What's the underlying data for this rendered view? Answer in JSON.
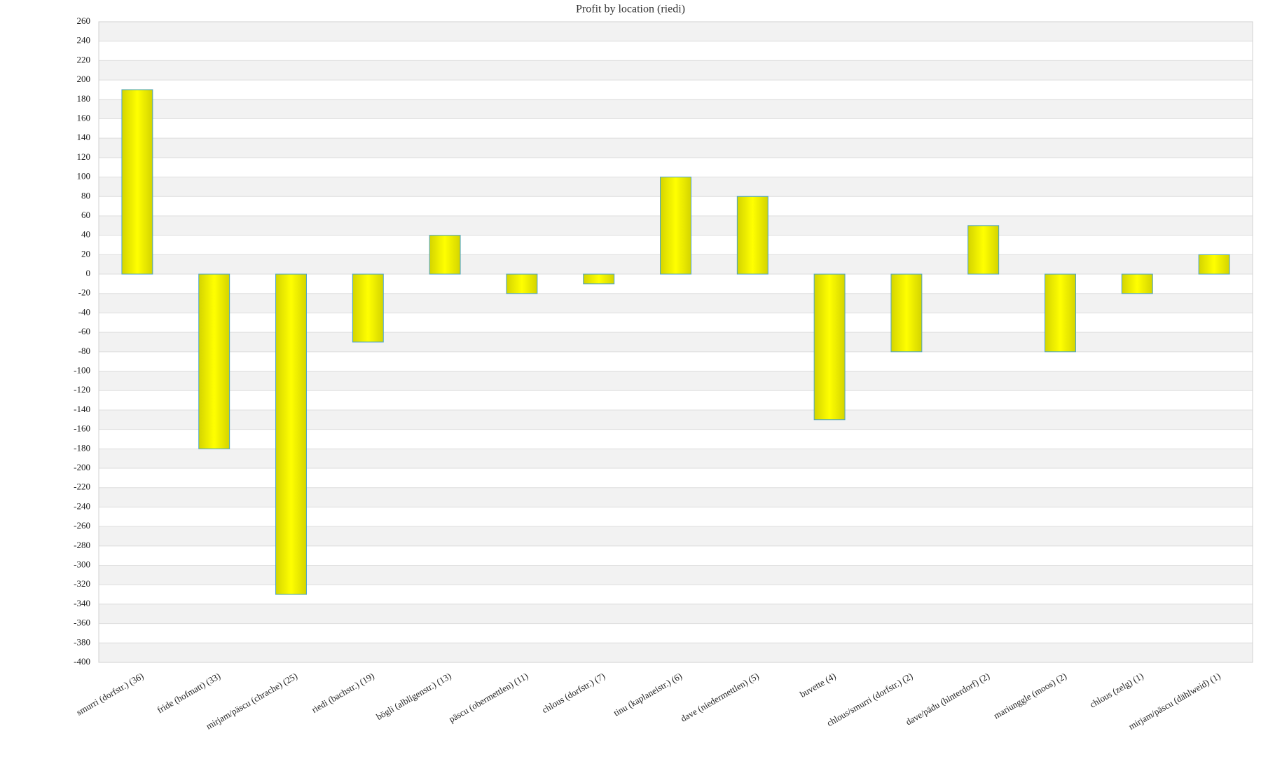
{
  "chart_data": {
    "type": "bar",
    "title": "Profit by location  (riedi)",
    "categories": [
      "smurri (dorfstr.) (36)",
      "fride (hofmatt) (33)",
      "mirjam/päscu (chrache) (25)",
      "riedi (bachstr.) (19)",
      "bögli (albligenstr.) (13)",
      "päscu (obermettlen) (11)",
      "chlous (dorfstr.) (7)",
      "tinu (kaplaneistr.) (6)",
      "dave (niedermettlen) (5)",
      "buvette (4)",
      "chlous/smurri (dorfstr.) (2)",
      "dave/pädu (hinterdorf) (2)",
      "mariunggle (moos) (2)",
      "chlous (zelg) (1)",
      "mirjam/päscu (dählweid) (1)"
    ],
    "values": [
      190,
      -180,
      -330,
      -70,
      40,
      -20,
      -10,
      100,
      80,
      -150,
      -80,
      50,
      -80,
      -20,
      20
    ],
    "color": "#ffff00",
    "ylim": [
      -400,
      260
    ],
    "yticks": [
      -400,
      -380,
      -360,
      -340,
      -320,
      -300,
      -280,
      -260,
      -240,
      -220,
      -200,
      -180,
      -160,
      -140,
      -120,
      -100,
      -80,
      -60,
      -40,
      -20,
      0,
      20,
      40,
      60,
      80,
      100,
      120,
      140,
      160,
      180,
      200,
      220,
      240,
      260
    ],
    "grid": true
  }
}
